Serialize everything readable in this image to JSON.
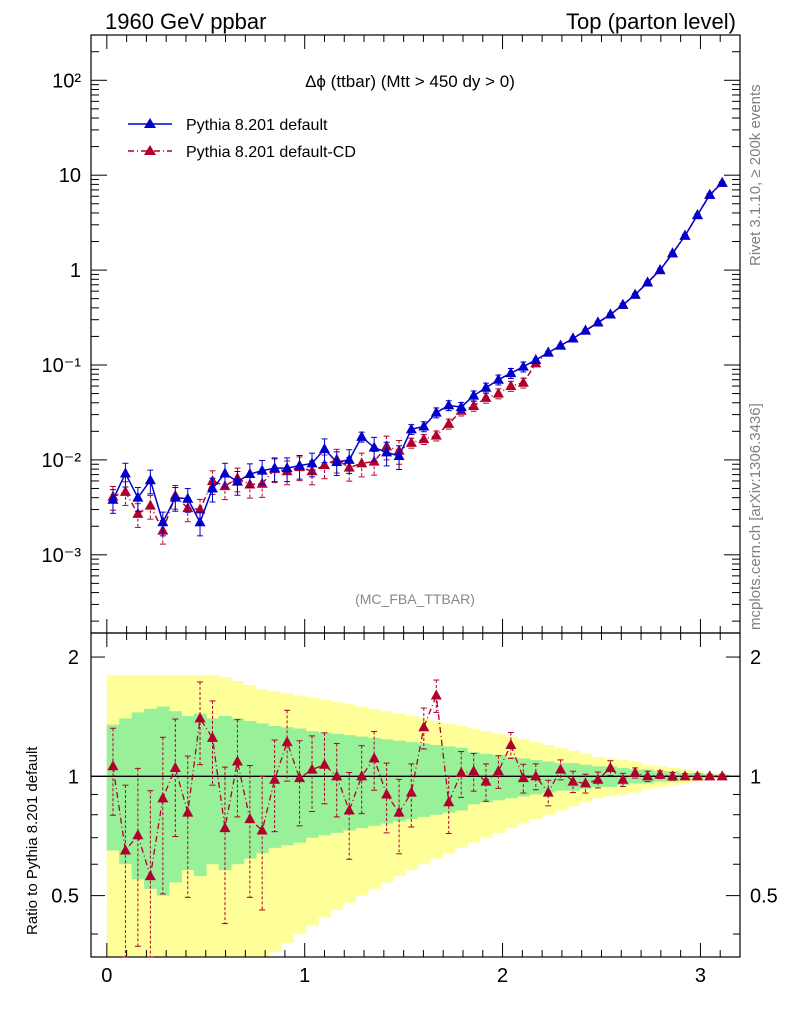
{
  "header": {
    "left": "1960 GeV ppbar",
    "right": "Top (parton level)"
  },
  "side_labels": {
    "rivet": "Rivet 3.1.10, ≥ 200k events",
    "mcplots": "mcplots.cern.ch [arXiv:1306.3436]"
  },
  "chart_data": [
    {
      "type": "line",
      "title": "Δϕ (ttbar) (Mtt > 450 dy > 0)",
      "annotation": "(MC_FBA_TTBAR)",
      "xlim": [
        -0.08,
        3.2
      ],
      "ylim": [
        0.00015,
        300
      ],
      "yscale": "log",
      "ytick_labels": [
        "10⁻³",
        "10⁻²",
        "10⁻¹",
        "1",
        "10",
        "10²"
      ],
      "ytick_values": [
        0.001,
        0.01,
        0.1,
        1,
        10,
        100
      ],
      "legend_position": "top-left",
      "x": [
        0.031,
        0.094,
        0.157,
        0.22,
        0.283,
        0.346,
        0.409,
        0.471,
        0.534,
        0.597,
        0.66,
        0.723,
        0.785,
        0.848,
        0.911,
        0.974,
        1.037,
        1.1,
        1.162,
        1.225,
        1.288,
        1.351,
        1.414,
        1.477,
        1.539,
        1.602,
        1.665,
        1.728,
        1.791,
        1.854,
        1.916,
        1.979,
        2.042,
        2.105,
        2.168,
        2.231,
        2.293,
        2.356,
        2.419,
        2.482,
        2.545,
        2.608,
        2.67,
        2.733,
        2.796,
        2.859,
        2.922,
        2.985,
        3.047,
        3.11
      ],
      "series": [
        {
          "name": "Pythia 8.201 default",
          "color": "#0000cc",
          "style": "solid",
          "marker": "triangle",
          "values": [
            0.0038,
            0.0072,
            0.004,
            0.0061,
            0.0022,
            0.004,
            0.0039,
            0.0022,
            0.005,
            0.0072,
            0.0059,
            0.0071,
            0.0077,
            0.0082,
            0.0082,
            0.0087,
            0.0092,
            0.013,
            0.0095,
            0.01,
            0.0175,
            0.0135,
            0.012,
            0.011,
            0.021,
            0.0225,
            0.0315,
            0.0375,
            0.036,
            0.0475,
            0.0575,
            0.07,
            0.082,
            0.096,
            0.113,
            0.135,
            0.16,
            0.19,
            0.23,
            0.28,
            0.34,
            0.43,
            0.55,
            0.74,
            1.0,
            1.5,
            2.3,
            3.8,
            6.2,
            8.3
          ]
        },
        {
          "name": "Pythia 8.201 default-CD",
          "color": "#b0002e",
          "style": "dash-dot",
          "marker": "triangle",
          "values": [
            0.0041,
            0.0046,
            0.0027,
            0.0033,
            0.0018,
            0.0042,
            0.0031,
            0.003,
            0.006,
            0.0053,
            0.0064,
            0.0055,
            0.0056,
            0.008,
            0.0076,
            0.0084,
            0.0076,
            0.0088,
            0.0101,
            0.0083,
            0.0092,
            0.0096,
            0.0139,
            0.0125,
            0.0151,
            0.0165,
            0.018,
            0.024,
            0.033,
            0.037,
            0.045,
            0.05,
            0.06,
            0.065,
            0.104,
            0.135,
            0.16,
            0.19,
            0.23,
            0.28,
            0.34,
            0.43,
            0.55,
            0.74,
            1.0,
            1.5,
            2.3,
            3.8,
            6.2,
            8.3
          ]
        }
      ]
    },
    {
      "type": "line",
      "ylabel": "Ratio to Pythia 8.201 default",
      "xlim": [
        -0.08,
        3.2
      ],
      "ylim": [
        0.35,
        2.3
      ],
      "x_tick_labels": [
        "0",
        "1",
        "2",
        "3"
      ],
      "y_tick_labels": [
        "0.5",
        "1",
        "2"
      ],
      "reference_line": 1,
      "bands": {
        "green": "#98f098",
        "yellow": "#ffff99",
        "green_halfwidth": [
          0.35,
          0.4,
          0.45,
          0.48,
          0.5,
          0.46,
          0.42,
          0.44,
          0.4,
          0.42,
          0.4,
          0.38,
          0.36,
          0.34,
          0.33,
          0.32,
          0.3,
          0.29,
          0.28,
          0.27,
          0.26,
          0.25,
          0.24,
          0.23,
          0.22,
          0.21,
          0.2,
          0.19,
          0.18,
          0.15,
          0.14,
          0.13,
          0.12,
          0.11,
          0.1,
          0.09,
          0.08,
          0.08,
          0.07,
          0.06,
          0.06,
          0.05,
          0.04,
          0.04,
          0.03,
          0.03,
          0.02,
          0.02,
          0.01,
          0.01
        ],
        "yellow_halfwidth": [
          0.8,
          0.8,
          0.8,
          0.8,
          0.8,
          0.8,
          0.8,
          0.8,
          0.8,
          0.78,
          0.74,
          0.7,
          0.66,
          0.64,
          0.62,
          0.6,
          0.58,
          0.56,
          0.54,
          0.52,
          0.5,
          0.48,
          0.46,
          0.44,
          0.42,
          0.4,
          0.38,
          0.36,
          0.34,
          0.32,
          0.3,
          0.28,
          0.26,
          0.24,
          0.22,
          0.2,
          0.18,
          0.16,
          0.14,
          0.12,
          0.11,
          0.1,
          0.09,
          0.07,
          0.06,
          0.05,
          0.04,
          0.03,
          0.02,
          0.01
        ]
      },
      "series": [
        {
          "name": "Pythia 8.201 default-CD",
          "color": "#b0002e",
          "style": "dash-dot",
          "marker": "triangle",
          "values": [
            1.06,
            0.65,
            0.71,
            0.56,
            0.88,
            1.05,
            0.81,
            1.4,
            1.25,
            0.74,
            1.09,
            0.78,
            0.73,
            0.98,
            1.22,
            0.99,
            1.04,
            1.07,
            1.0,
            0.82,
            1.0,
            1.11,
            0.9,
            0.81,
            0.91,
            1.33,
            1.6,
            0.86,
            1.02,
            1.03,
            0.97,
            1.03,
            1.2,
            0.99,
            1.0,
            0.91,
            1.04,
            0.97,
            0.96,
            0.98,
            1.05,
            0.98,
            1.02,
            1.0,
            1.01,
            1.0,
            1.0,
            1.0,
            1.0,
            1.0
          ]
        }
      ]
    }
  ]
}
